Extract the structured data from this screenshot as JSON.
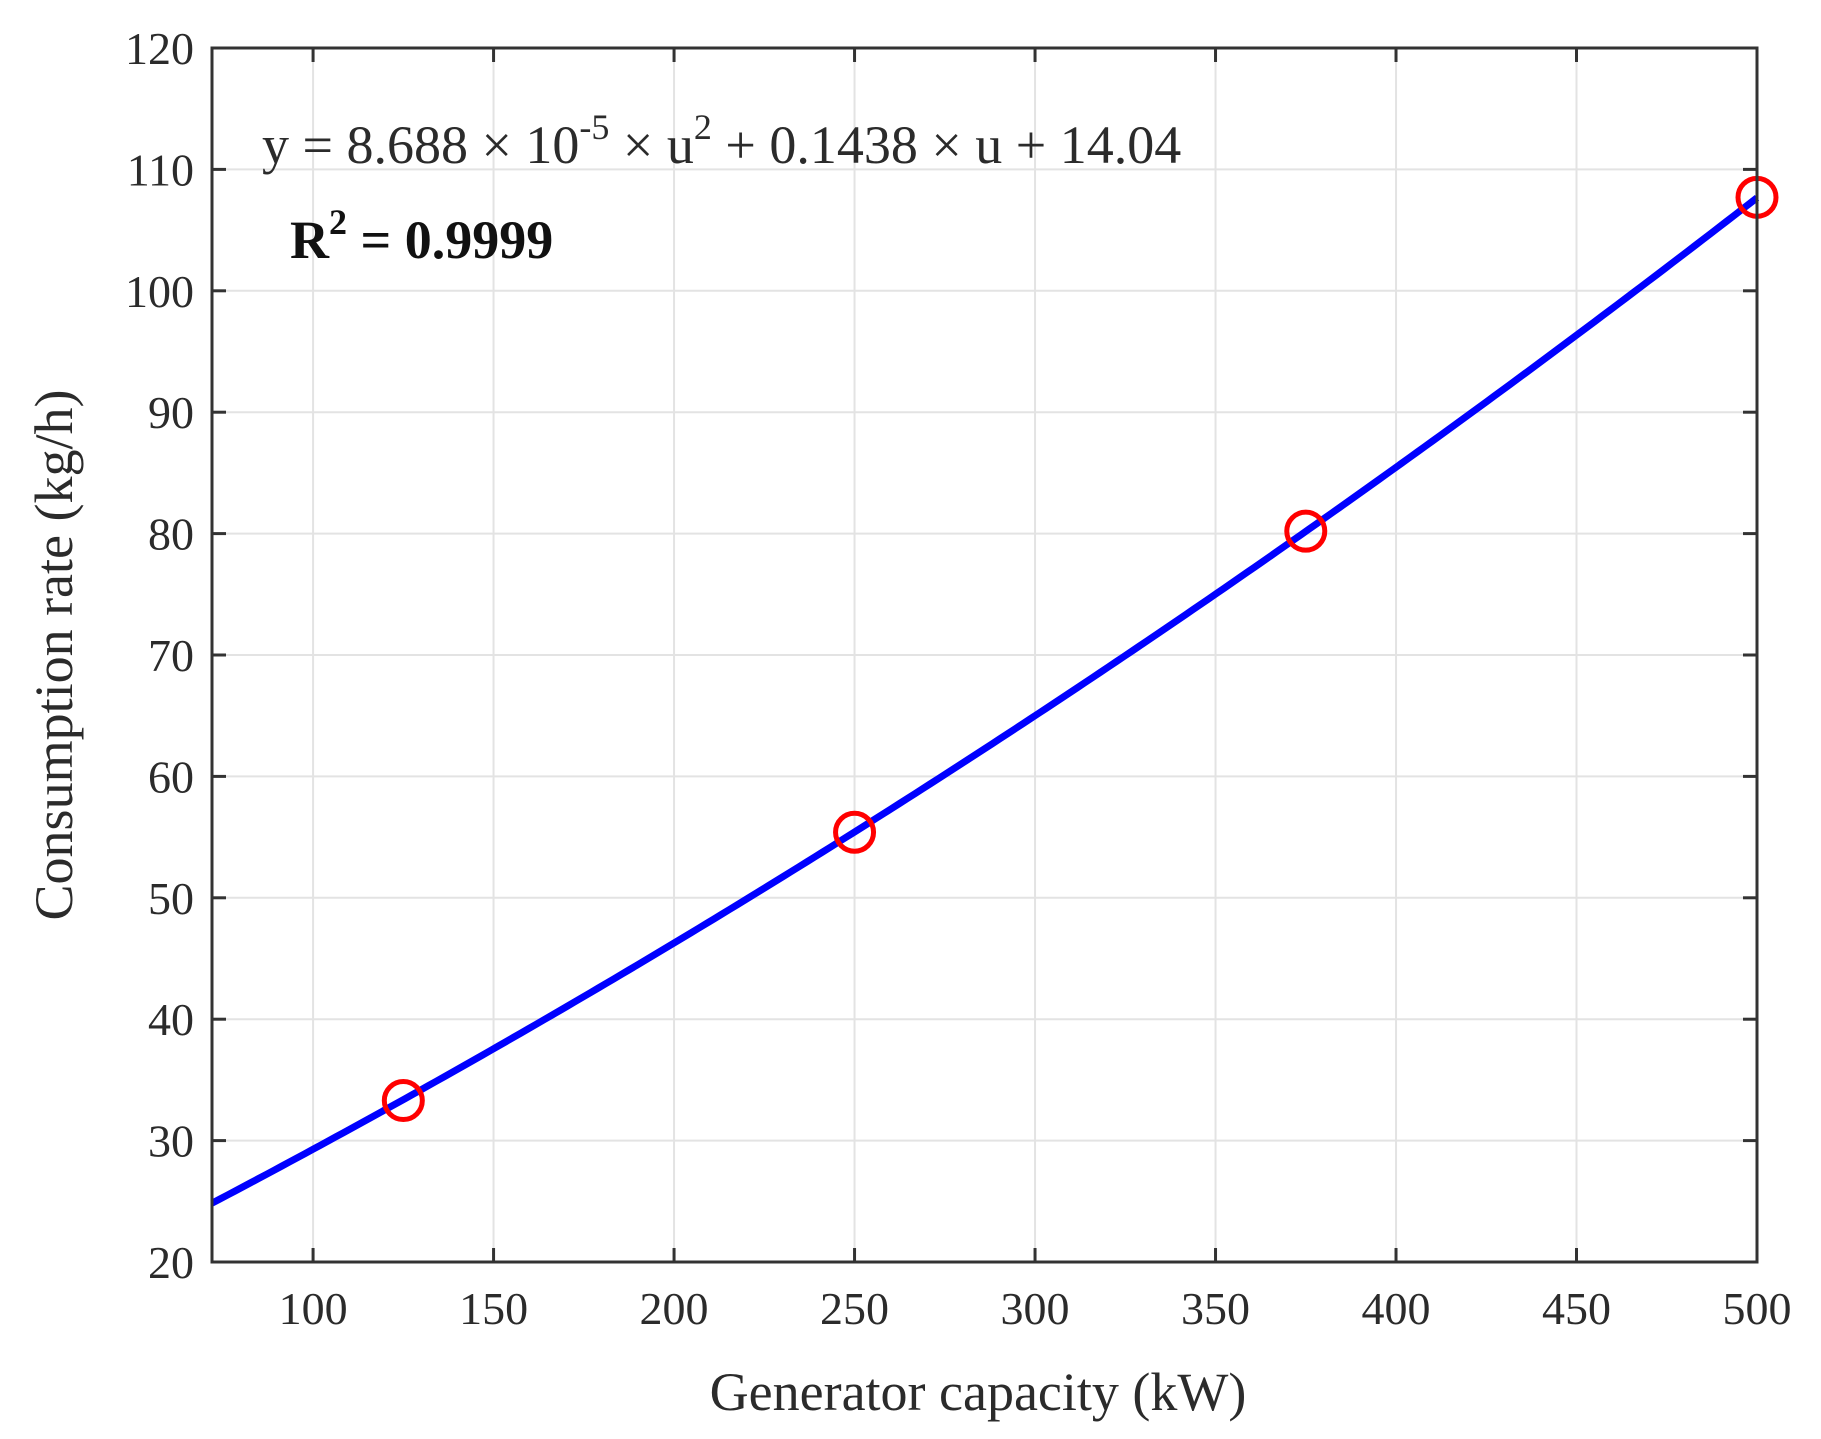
{
  "chart_data": {
    "type": "scatter",
    "xlabel": "Generator capacity (kW)",
    "ylabel": "Consumption rate (kg/h)",
    "xlim": [
      72,
      500
    ],
    "ylim": [
      20,
      120
    ],
    "xticks": [
      100,
      150,
      200,
      250,
      300,
      350,
      400,
      450,
      500
    ],
    "yticks": [
      20,
      30,
      40,
      50,
      60,
      70,
      80,
      90,
      100,
      110,
      120
    ],
    "grid": true,
    "annotations": {
      "equation": {
        "prefix": "y = 8.688 × 10",
        "exp1": "-5",
        "middle": " × u",
        "exp2": "2",
        "suffix": " + 0.1438 × u + 14.04"
      },
      "r2": {
        "prefix": "R",
        "exp": "2",
        "suffix": " = 0.9999"
      }
    },
    "series": [
      {
        "kind": "points",
        "marker": "circle",
        "color": "#ff0000",
        "x": [
          125,
          250,
          375,
          500
        ],
        "y": [
          33.3,
          55.4,
          80.2,
          107.7
        ]
      },
      {
        "kind": "fit-curve",
        "color": "#0000ff",
        "coefficients": {
          "a": 8.688e-05,
          "b": 0.1438,
          "c": 14.04
        }
      }
    ]
  }
}
